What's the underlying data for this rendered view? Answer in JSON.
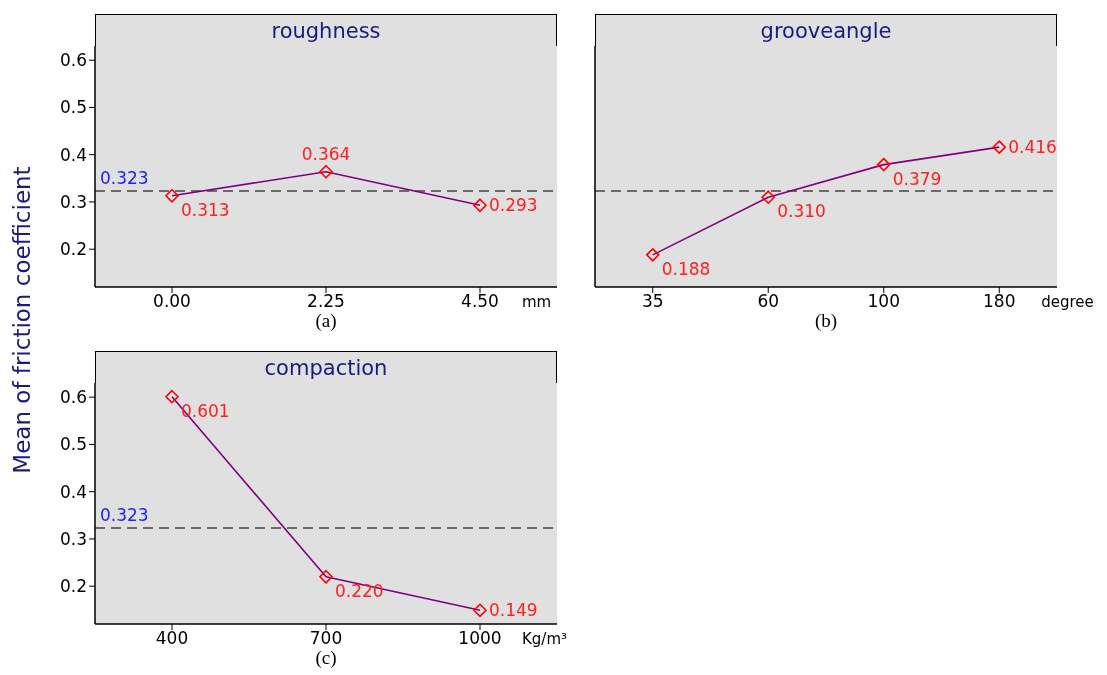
{
  "chart_data": [
    {
      "type": "line",
      "title": "roughness",
      "xlabel": "mm",
      "ylabel": "Mean of friction coefficient",
      "categories": [
        "0.00",
        "2.25",
        "4.50"
      ],
      "series": [
        {
          "color": "#800080",
          "values": [
            0.313,
            0.364,
            0.293
          ],
          "value_labels": [
            "0.313",
            "0.364",
            "0.293"
          ]
        }
      ],
      "ylim": [
        0.12,
        0.63
      ],
      "yticks": [
        0.2,
        0.3,
        0.4,
        0.5,
        0.6
      ],
      "marker": "diamond",
      "ref_lines": [
        {
          "axis": "y",
          "value": 0.323,
          "label": "0.323",
          "line_style": "dashed"
        }
      ],
      "annotations": [
        "(a)"
      ]
    },
    {
      "type": "line",
      "title": "grooveangle",
      "xlabel": "degree",
      "categories": [
        "35",
        "60",
        "100",
        "180"
      ],
      "series": [
        {
          "color": "#800080",
          "values": [
            0.188,
            0.31,
            0.379,
            0.416
          ],
          "value_labels": [
            "0.188",
            "0.310",
            "0.379",
            "0.416"
          ]
        }
      ],
      "ylim": [
        0.12,
        0.63
      ],
      "yticks": [
        0.2,
        0.3,
        0.4,
        0.5,
        0.6
      ],
      "tick_labels": "x",
      "marker": "diamond",
      "ref_lines": [
        {
          "axis": "y",
          "value": 0.323,
          "label": null,
          "line_style": "dashed"
        }
      ],
      "annotations": [
        "(b)"
      ]
    },
    {
      "type": "line",
      "title": "compaction",
      "xlabel": "Kg/m³",
      "categories": [
        "400",
        "700",
        "1000"
      ],
      "series": [
        {
          "color": "#800080",
          "values": [
            0.601,
            0.22,
            0.149
          ],
          "value_labels": [
            "0.601",
            "0.220",
            "0.149"
          ]
        }
      ],
      "ylim": [
        0.12,
        0.63
      ],
      "yticks": [
        0.2,
        0.3,
        0.4,
        0.5,
        0.6
      ],
      "marker": "diamond",
      "ref_lines": [
        {
          "axis": "y",
          "value": 0.323,
          "label": "0.323",
          "line_style": "dashed"
        }
      ],
      "annotations": [
        "(c)"
      ]
    }
  ]
}
